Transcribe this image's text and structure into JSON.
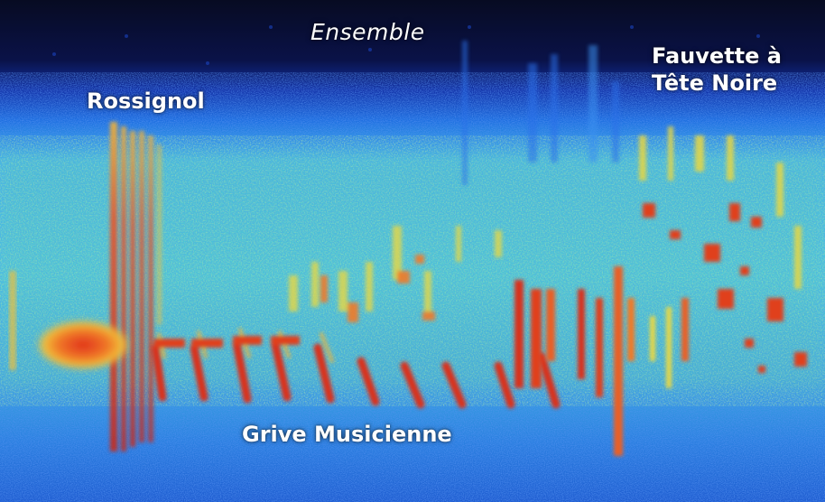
{
  "labels": {
    "ensemble": "Ensemble",
    "rossignol": "Rossignol",
    "fauvette_line1": "Fauvette à",
    "fauvette_line2": "Tête Noire",
    "grive": "Grive Musicienne"
  },
  "palette": {
    "background_dark": "#0a0e2a",
    "deep_blue": "#1232a8",
    "blue": "#1e6fe0",
    "cyan": "#3fc4e8",
    "green": "#7ee07a",
    "yellow": "#e8e04a",
    "orange": "#f08a2a",
    "red": "#d8301e"
  }
}
